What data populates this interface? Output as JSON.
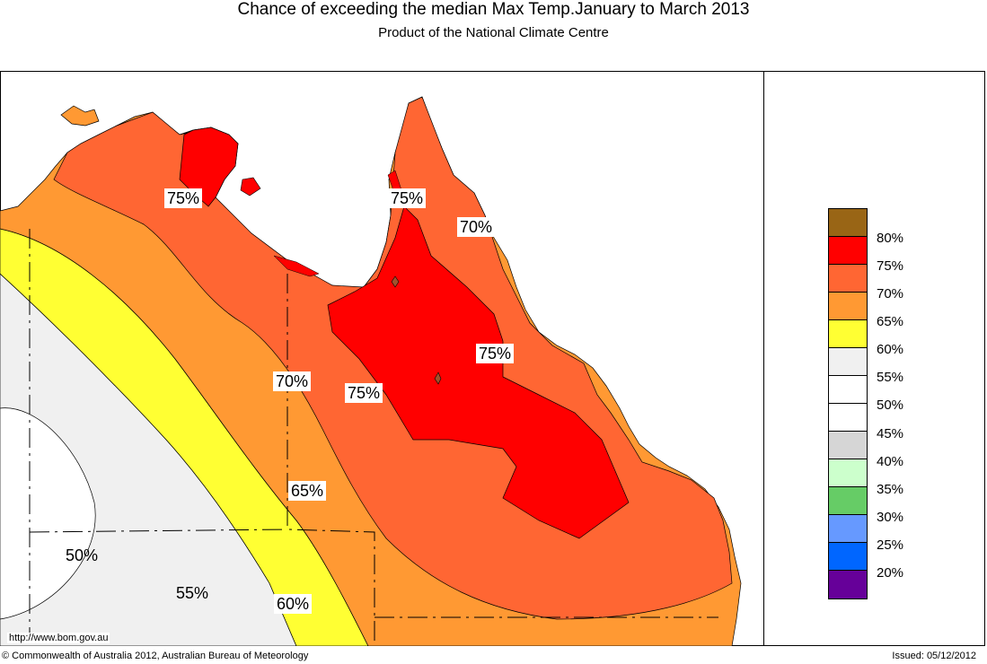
{
  "header": {
    "title": "Chance of exceeding the median Max Temp.January to March 2013",
    "subtitle": "Product of the National Climate Centre"
  },
  "map": {
    "region": "Northern and eastern Australia (Queensland and surrounds)",
    "contour_labels": [
      {
        "text": "75%"
      },
      {
        "text": "75%"
      },
      {
        "text": "70%"
      },
      {
        "text": "75%"
      },
      {
        "text": "70%"
      },
      {
        "text": "75%"
      },
      {
        "text": "65%"
      },
      {
        "text": "50%"
      },
      {
        "text": "55%"
      },
      {
        "text": "60%"
      }
    ],
    "url": "http://www.bom.gov.au"
  },
  "legend": {
    "items": [
      {
        "label": "80%",
        "color": "#996515"
      },
      {
        "label": "75%",
        "color": "#ff0000"
      },
      {
        "label": "70%",
        "color": "#ff6633"
      },
      {
        "label": "65%",
        "color": "#ff9933"
      },
      {
        "label": "60%",
        "color": "#ffff33"
      },
      {
        "label": "55%",
        "color": "#f0f0f0"
      },
      {
        "label": "50%",
        "color": "#ffffff"
      },
      {
        "label": "45%",
        "color": "#ffffff"
      },
      {
        "label": "40%",
        "color": "#d6d6d6"
      },
      {
        "label": "35%",
        "color": "#ccffcc"
      },
      {
        "label": "30%",
        "color": "#66cc66"
      },
      {
        "label": "25%",
        "color": "#6699ff"
      },
      {
        "label": "20%",
        "color": "#0066ff"
      },
      {
        "label": "",
        "color": "#660099"
      }
    ]
  },
  "footer": {
    "copyright": "© Commonwealth of Australia 2012, Australian Bureau of Meteorology",
    "issued": "Issued: 05/12/2012"
  }
}
